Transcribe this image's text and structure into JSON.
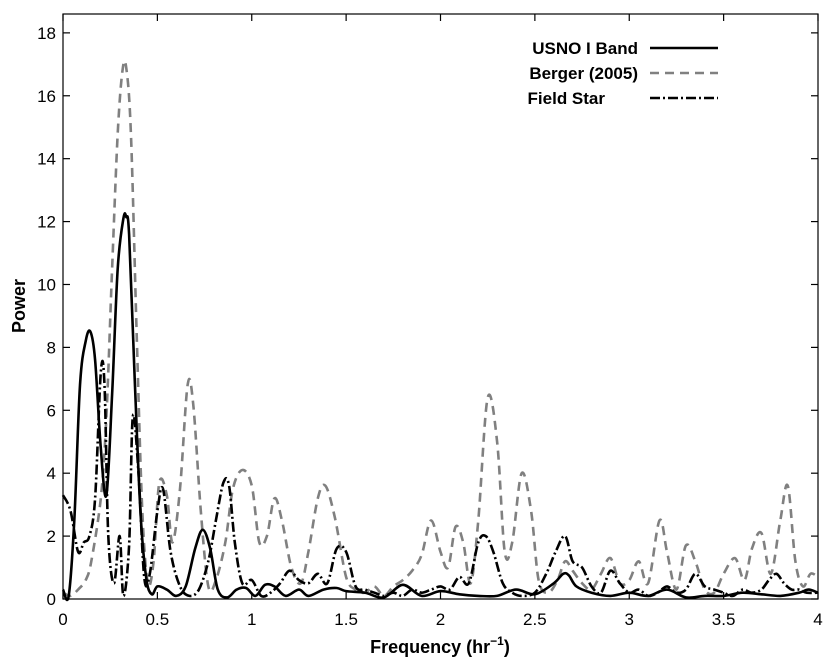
{
  "chart_data": {
    "type": "line",
    "xlabel": "Frequency (hr",
    "xlabel_sup": "−1",
    "xlabel_tail": ")",
    "ylabel": "Power",
    "xlim": [
      0,
      4
    ],
    "ylim": [
      0,
      18.6
    ],
    "x_ticks": [
      0,
      0.5,
      1,
      1.5,
      2,
      2.5,
      3,
      3.5,
      4
    ],
    "x_tick_labels": [
      "0",
      "0.5",
      "1",
      "1.5",
      "2",
      "2.5",
      "3",
      "3.5",
      "4"
    ],
    "y_ticks": [
      0,
      2,
      4,
      6,
      8,
      10,
      12,
      14,
      16,
      18
    ],
    "y_tick_labels": [
      "0",
      "2",
      "4",
      "6",
      "8",
      "10",
      "12",
      "14",
      "16",
      "18"
    ],
    "grid": false,
    "legend_position": "top-right",
    "series": [
      {
        "name": "USNO I Band",
        "color": "#000000",
        "style": "solid",
        "x": [
          0,
          0.03,
          0.06,
          0.09,
          0.12,
          0.145,
          0.17,
          0.2,
          0.23,
          0.26,
          0.29,
          0.32,
          0.335,
          0.35,
          0.38,
          0.41,
          0.44,
          0.47,
          0.5,
          0.55,
          0.6,
          0.65,
          0.7,
          0.74,
          0.78,
          0.82,
          0.87,
          0.92,
          0.97,
          1.02,
          1.07,
          1.12,
          1.18,
          1.25,
          1.3,
          1.38,
          1.45,
          1.5,
          1.6,
          1.7,
          1.8,
          1.9,
          2.0,
          2.1,
          2.2,
          2.3,
          2.4,
          2.5,
          2.6,
          2.65,
          2.68,
          2.72,
          2.8,
          2.9,
          3.0,
          3.1,
          3.2,
          3.3,
          3.4,
          3.5,
          3.6,
          3.7,
          3.8,
          3.9,
          3.95,
          4.0
        ],
        "y": [
          0.3,
          0.1,
          2.5,
          6.8,
          8.2,
          8.5,
          7.6,
          4.8,
          3.3,
          6.5,
          10.5,
          12.1,
          12.15,
          11.6,
          7.0,
          2.8,
          0.7,
          0.15,
          0.4,
          0.3,
          0.1,
          0.4,
          1.6,
          2.2,
          1.6,
          0.3,
          0.05,
          0.3,
          0.35,
          0.1,
          0.45,
          0.4,
          0.1,
          0.3,
          0.1,
          0.3,
          0.35,
          0.25,
          0.2,
          0.05,
          0.45,
          0.1,
          0.25,
          0.15,
          0.1,
          0.1,
          0.3,
          0.15,
          0.5,
          0.8,
          0.75,
          0.4,
          0.2,
          0.1,
          0.2,
          0.1,
          0.3,
          0.05,
          0.1,
          0.1,
          0.2,
          0.15,
          0.1,
          0.2,
          0.3,
          0.2
        ]
      },
      {
        "name": "Berger (2005)",
        "color": "#808080",
        "style": "dashed",
        "x": [
          0,
          0.04,
          0.08,
          0.12,
          0.15,
          0.2,
          0.23,
          0.26,
          0.29,
          0.315,
          0.335,
          0.36,
          0.39,
          0.42,
          0.45,
          0.48,
          0.51,
          0.55,
          0.58,
          0.62,
          0.66,
          0.69,
          0.73,
          0.77,
          0.81,
          0.86,
          0.9,
          0.95,
          1.0,
          1.04,
          1.08,
          1.12,
          1.16,
          1.21,
          1.26,
          1.3,
          1.35,
          1.39,
          1.44,
          1.5,
          1.55,
          1.6,
          1.65,
          1.7,
          1.75,
          1.8,
          1.85,
          1.9,
          1.95,
          2.0,
          2.04,
          2.08,
          2.12,
          2.16,
          2.2,
          2.25,
          2.3,
          2.34,
          2.38,
          2.43,
          2.48,
          2.52,
          2.57,
          2.62,
          2.66,
          2.7,
          2.75,
          2.8,
          2.85,
          2.9,
          2.95,
          3.0,
          3.05,
          3.1,
          3.16,
          3.2,
          3.25,
          3.3,
          3.35,
          3.4,
          3.45,
          3.5,
          3.56,
          3.61,
          3.65,
          3.7,
          3.75,
          3.8,
          3.84,
          3.88,
          3.92,
          3.96,
          4.0
        ],
        "y": [
          0.2,
          0.1,
          0.3,
          0.6,
          1.2,
          3.2,
          5.8,
          10.5,
          14.8,
          16.8,
          16.9,
          14.8,
          8.5,
          2.8,
          0.5,
          1.2,
          3.7,
          3.3,
          1.8,
          3.5,
          6.8,
          6.2,
          2.8,
          0.4,
          0.6,
          1.8,
          3.5,
          4.1,
          3.6,
          1.8,
          2.0,
          3.2,
          2.5,
          1.0,
          0.5,
          1.5,
          3.2,
          3.6,
          2.6,
          0.7,
          0.3,
          0.2,
          0.4,
          0.1,
          0.4,
          0.6,
          0.9,
          1.4,
          2.5,
          1.5,
          1.0,
          2.3,
          1.8,
          0.5,
          2.5,
          6.4,
          5.0,
          1.5,
          1.8,
          4.0,
          2.8,
          0.6,
          0.2,
          0.6,
          1.2,
          0.9,
          0.5,
          0.3,
          0.8,
          1.3,
          0.5,
          0.6,
          1.2,
          0.5,
          2.5,
          1.5,
          0.3,
          1.7,
          1.2,
          0.3,
          0.2,
          0.8,
          1.3,
          0.6,
          1.6,
          2.1,
          0.8,
          2.5,
          3.6,
          1.2,
          0.4,
          0.8,
          0.7
        ]
      },
      {
        "name": "Field Star",
        "color": "#000000",
        "style": "dashdot",
        "x": [
          0,
          0.04,
          0.08,
          0.11,
          0.14,
          0.17,
          0.2,
          0.22,
          0.24,
          0.27,
          0.3,
          0.32,
          0.35,
          0.37,
          0.4,
          0.43,
          0.46,
          0.5,
          0.53,
          0.57,
          0.62,
          0.67,
          0.72,
          0.77,
          0.81,
          0.85,
          0.88,
          0.91,
          0.95,
          1.0,
          1.05,
          1.1,
          1.15,
          1.2,
          1.25,
          1.3,
          1.35,
          1.4,
          1.45,
          1.5,
          1.55,
          1.6,
          1.65,
          1.7,
          1.75,
          1.8,
          1.85,
          1.9,
          1.95,
          2.0,
          2.05,
          2.1,
          2.15,
          2.2,
          2.24,
          2.28,
          2.33,
          2.38,
          2.43,
          2.5,
          2.56,
          2.61,
          2.66,
          2.7,
          2.75,
          2.8,
          2.85,
          2.9,
          2.95,
          3.0,
          3.05,
          3.1,
          3.15,
          3.2,
          3.25,
          3.3,
          3.35,
          3.4,
          3.45,
          3.5,
          3.55,
          3.6,
          3.65,
          3.7,
          3.74,
          3.78,
          3.82,
          3.86,
          3.9,
          3.94,
          4.0
        ],
        "y": [
          3.3,
          2.8,
          1.5,
          1.8,
          2.0,
          3.2,
          7.2,
          6.8,
          2.0,
          0.5,
          2.0,
          0.1,
          1.7,
          5.8,
          4.0,
          0.7,
          0.8,
          2.8,
          3.5,
          1.5,
          0.4,
          0.1,
          0.3,
          1.2,
          2.5,
          3.7,
          3.6,
          1.8,
          0.5,
          0.6,
          0.1,
          0.2,
          0.5,
          0.9,
          0.6,
          0.5,
          0.8,
          0.5,
          1.6,
          1.5,
          0.4,
          0.3,
          0.2,
          0.1,
          0.2,
          0.1,
          0.3,
          0.2,
          0.3,
          0.4,
          0.3,
          0.7,
          0.5,
          1.8,
          2.0,
          1.5,
          0.5,
          0.2,
          0.1,
          0.2,
          0.8,
          1.5,
          2.0,
          1.2,
          1.0,
          0.4,
          0.2,
          0.9,
          0.5,
          0.2,
          0.3,
          0.1,
          0.2,
          0.4,
          0.2,
          0.3,
          0.8,
          0.4,
          0.3,
          0.2,
          0.1,
          0.3,
          0.2,
          0.3,
          0.6,
          0.8,
          0.5,
          0.3,
          0.3,
          0.2,
          0.2
        ]
      }
    ]
  }
}
